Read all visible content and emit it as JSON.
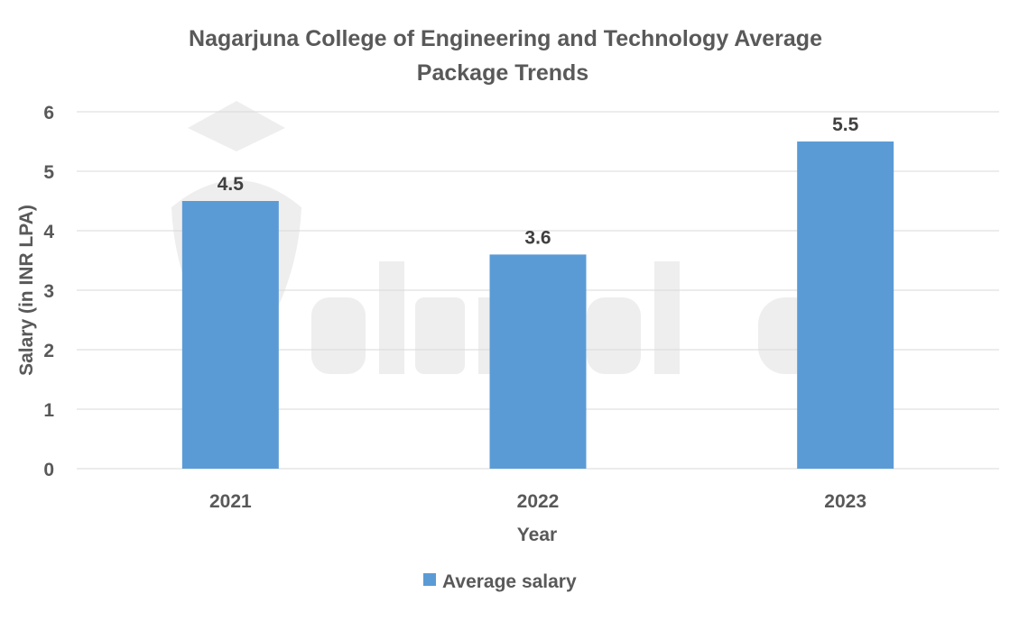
{
  "chart_data": {
    "type": "bar",
    "title": [
      "Nagarjuna College of Engineering and Technology Average",
      "Package Trends"
    ],
    "xlabel": "Year",
    "ylabel": "Salary (in INR LPA)",
    "categories": [
      "2021",
      "2022",
      "2023"
    ],
    "series": [
      {
        "name": "Average salary",
        "values": [
          4.5,
          3.6,
          5.5
        ],
        "color": "#5B9BD5"
      }
    ],
    "data_labels": [
      "4.5",
      "3.6",
      "5.5"
    ],
    "ylim": [
      0,
      6
    ],
    "yticks": [
      "0",
      "1",
      "2",
      "3",
      "4",
      "5",
      "6"
    ],
    "grid": true,
    "legend_position": "bottom",
    "watermark": "shiksha"
  }
}
